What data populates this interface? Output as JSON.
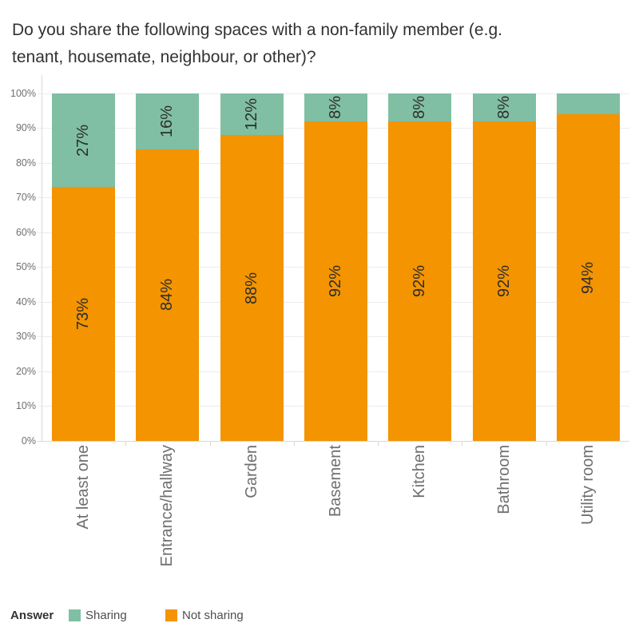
{
  "title": {
    "line1": "Do you share the following spaces with a non-family member (e.g.",
    "line2": "tenant, housemate, neighbour, or other)?"
  },
  "chart_data": {
    "type": "bar",
    "stacked": true,
    "orientation": "vertical",
    "title": "Do you share the following spaces with a non-family member (e.g. tenant, housemate, neighbour, or other)?",
    "categories": [
      "At least one",
      "Entrance/hallway",
      "Garden",
      "Basement",
      "Kitchen",
      "Bathroom",
      "Utility room"
    ],
    "series": [
      {
        "name": "Sharing",
        "color": "#80BFA3",
        "values": [
          27,
          16,
          12,
          8,
          8,
          8,
          6
        ],
        "labels": [
          "27%",
          "16%",
          "12%",
          "8%",
          "8%",
          "8%",
          ""
        ]
      },
      {
        "name": "Not sharing",
        "color": "#F39400",
        "values": [
          73,
          84,
          88,
          92,
          92,
          92,
          94
        ],
        "labels": [
          "73%",
          "84%",
          "88%",
          "92%",
          "92%",
          "92%",
          "94%"
        ]
      }
    ],
    "xlabel": "",
    "ylabel": "",
    "ylim": [
      0,
      100
    ],
    "y_tick_labels": [
      "0%",
      "10%",
      "20%",
      "30%",
      "40%",
      "50%",
      "60%",
      "70%",
      "80%",
      "90%",
      "100%"
    ],
    "grid": true,
    "legend_position": "bottom",
    "legend_title": "Answer"
  },
  "legend": {
    "title": "Answer",
    "items": [
      {
        "label": "Sharing",
        "color": "#80BFA3"
      },
      {
        "label": "Not sharing",
        "color": "#F39400"
      }
    ]
  },
  "colors": {
    "sharing": "#80BFA3",
    "not_sharing": "#F39400",
    "grid": "#ECECEC",
    "axis": "#D9D9D9",
    "bar_label": "#2D2D2D",
    "axis_label": "#6F6F6F",
    "title": "#323232",
    "legend_text": "#4E4E4E"
  }
}
